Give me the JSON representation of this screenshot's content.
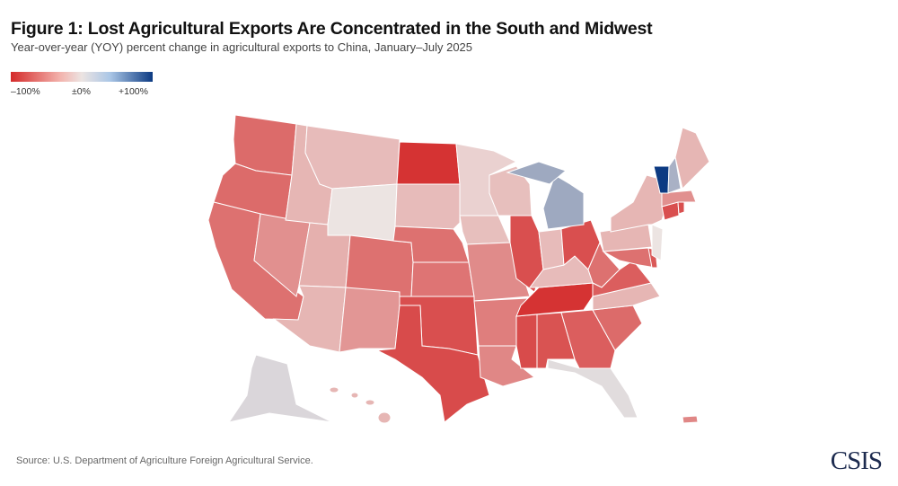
{
  "title": "Figure 1: Lost Agricultural Exports Are Concentrated in the South and Midwest",
  "subtitle": "Year-over-year (YOY) percent change in agricultural exports to China, January–July 2025",
  "legend": {
    "min_label": "–100%",
    "mid_label": "±0%",
    "max_label": "+100%",
    "min_color": "#d42a2a",
    "mid_color": "#ece4e2",
    "max_color": "#0c3a82"
  },
  "source": "Source: U.S. Department of Agriculture Foreign Agricultural Service.",
  "logo": "CSIS",
  "map_data": {
    "values": {
      "WA": -65,
      "OR": -65,
      "CA": -62,
      "NV": -45,
      "ID": -25,
      "MT": -22,
      "WY": 0,
      "UT": -28,
      "AZ": -25,
      "CO": -62,
      "NM": -42,
      "ND": -95,
      "SD": -22,
      "NE": -62,
      "KS": -60,
      "OK": -80,
      "TX": -82,
      "MN": -10,
      "IA": -20,
      "MO": -48,
      "WI": -20,
      "IL": -80,
      "AR": -55,
      "LA": -50,
      "MS": -82,
      "AL": -78,
      "GA": -72,
      "FL": 5,
      "SC": -65,
      "NC": -25,
      "TN": -95,
      "KY": -22,
      "IN": -22,
      "OH": -80,
      "MI": 35,
      "WV": -62,
      "VA": -72,
      "PA": -25,
      "NY": -25,
      "MD": -62,
      "DE": -75,
      "NJ": 0,
      "CT": -80,
      "RI": -80,
      "MA": -45,
      "VT": 100,
      "NH": 30,
      "ME": -25,
      "AK": 8,
      "HI": -25,
      "PR": -50
    }
  }
}
